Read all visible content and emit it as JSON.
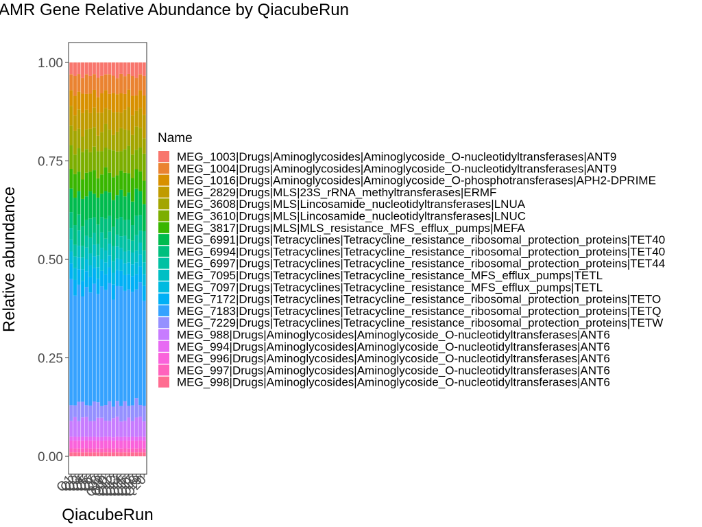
{
  "chart_data": {
    "type": "bar",
    "stacked": true,
    "title": "AMR Gene Relative Abundance by QiacubeRun",
    "xlabel": "QiacubeRun",
    "ylabel": "Relative abundance",
    "ylim": [
      0,
      1
    ],
    "yticks": [
      "0.00",
      "0.25",
      "0.50",
      "0.75",
      "1.00"
    ],
    "grid": false,
    "legend_title": "Name",
    "legend_position": "right",
    "categories": [
      "Q1",
      "Q2",
      "Q3",
      "Q4",
      "Q5",
      "Q6",
      "Q7",
      "Q8",
      "Q9",
      "Q10",
      "Q11",
      "Q12",
      "Q13",
      "Q14",
      "Q15",
      "Q16",
      "Q17",
      "Q18",
      "Q19",
      "Q20"
    ],
    "series": [
      {
        "name": "MEG_1003|Drugs|Aminoglycosides|Aminoglycoside_O-nucleotidyltransferases|ANT9",
        "color": "#F8766D",
        "values": [
          0.03,
          0.035,
          0.03,
          0.04,
          0.03,
          0.035,
          0.03,
          0.04,
          0.035,
          0.03,
          0.03,
          0.035,
          0.04,
          0.03,
          0.035,
          0.03,
          0.035,
          0.04,
          0.03,
          0.035
        ]
      },
      {
        "name": "MEG_1004|Drugs|Aminoglycosides|Aminoglycoside_O-nucleotidyltransferases|ANT9",
        "color": "#EA8331",
        "values": [
          0.04,
          0.05,
          0.045,
          0.04,
          0.05,
          0.045,
          0.04,
          0.05,
          0.045,
          0.04,
          0.05,
          0.045,
          0.04,
          0.05,
          0.045,
          0.04,
          0.05,
          0.045,
          0.04,
          0.05
        ]
      },
      {
        "name": "MEG_1016|Drugs|Aminoglycosides|Aminoglycoside_O-phosphotransferases|APH2-DPRIME",
        "color": "#D89000",
        "values": [
          0.04,
          0.05,
          0.045,
          0.05,
          0.04,
          0.05,
          0.045,
          0.04,
          0.05,
          0.045,
          0.04,
          0.05,
          0.045,
          0.05,
          0.04,
          0.045,
          0.05,
          0.04,
          0.045,
          0.05
        ]
      },
      {
        "name": "MEG_2829|Drugs|MLS|23S_rRNA_methyltransferases|ERMF",
        "color": "#C09B00",
        "values": [
          0.05,
          0.04,
          0.05,
          0.06,
          0.05,
          0.04,
          0.05,
          0.06,
          0.05,
          0.04,
          0.05,
          0.06,
          0.05,
          0.04,
          0.05,
          0.06,
          0.05,
          0.04,
          0.05,
          0.06
        ]
      },
      {
        "name": "MEG_3608|Drugs|MLS|Lincosamide_nucleotidyltransferases|LNUA",
        "color": "#A3A500",
        "values": [
          0.05,
          0.06,
          0.05,
          0.04,
          0.05,
          0.06,
          0.05,
          0.04,
          0.05,
          0.06,
          0.05,
          0.04,
          0.05,
          0.06,
          0.05,
          0.04,
          0.05,
          0.06,
          0.05,
          0.04
        ]
      },
      {
        "name": "MEG_3610|Drugs|MLS|Lincosamide_nucleotidyltransferases|LNUC",
        "color": "#7CAE00",
        "values": [
          0.06,
          0.05,
          0.06,
          0.07,
          0.06,
          0.05,
          0.06,
          0.07,
          0.06,
          0.05,
          0.06,
          0.07,
          0.06,
          0.05,
          0.06,
          0.07,
          0.06,
          0.05,
          0.06,
          0.07
        ]
      },
      {
        "name": "MEG_3817|Drugs|MLS|MLS_resistance_MFS_efflux_pumps|MEFA",
        "color": "#39B600",
        "values": [
          0.05,
          0.06,
          0.05,
          0.05,
          0.06,
          0.05,
          0.06,
          0.05,
          0.05,
          0.06,
          0.05,
          0.06,
          0.05,
          0.05,
          0.06,
          0.05,
          0.06,
          0.05,
          0.05,
          0.06
        ]
      },
      {
        "name": "MEG_6991|Drugs|Tetracyclines|Tetracycline_resistance_ribosomal_protection_proteins|TET40",
        "color": "#00BB4E",
        "values": [
          0.06,
          0.07,
          0.06,
          0.07,
          0.06,
          0.07,
          0.06,
          0.07,
          0.06,
          0.07,
          0.06,
          0.07,
          0.06,
          0.07,
          0.06,
          0.07,
          0.06,
          0.07,
          0.06,
          0.07
        ]
      },
      {
        "name": "MEG_6994|Drugs|Tetracyclines|Tetracycline_resistance_ribosomal_protection_proteins|TET40",
        "color": "#00BF7D",
        "values": [
          0.04,
          0.05,
          0.04,
          0.05,
          0.04,
          0.05,
          0.04,
          0.05,
          0.04,
          0.05,
          0.04,
          0.05,
          0.04,
          0.05,
          0.04,
          0.05,
          0.04,
          0.05,
          0.04,
          0.05
        ]
      },
      {
        "name": "MEG_6997|Drugs|Tetracyclines|Tetracycline_resistance_ribosomal_protection_proteins|TET44",
        "color": "#00C1A3",
        "values": [
          0.03,
          0.03,
          0.04,
          0.03,
          0.03,
          0.04,
          0.03,
          0.03,
          0.04,
          0.03,
          0.03,
          0.04,
          0.03,
          0.03,
          0.04,
          0.03,
          0.03,
          0.04,
          0.03,
          0.03
        ]
      },
      {
        "name": "MEG_7095|Drugs|Tetracyclines|Tetracycline_resistance_MFS_efflux_pumps|TETL",
        "color": "#00BFC4",
        "values": [
          0.03,
          0.03,
          0.03,
          0.03,
          0.03,
          0.03,
          0.03,
          0.03,
          0.03,
          0.03,
          0.03,
          0.03,
          0.03,
          0.03,
          0.03,
          0.03,
          0.03,
          0.03,
          0.03,
          0.03
        ]
      },
      {
        "name": "MEG_7097|Drugs|Tetracyclines|Tetracycline_resistance_MFS_efflux_pumps|TETL",
        "color": "#00BAE0",
        "values": [
          0.03,
          0.03,
          0.03,
          0.03,
          0.03,
          0.03,
          0.03,
          0.03,
          0.03,
          0.03,
          0.03,
          0.03,
          0.03,
          0.03,
          0.03,
          0.03,
          0.03,
          0.03,
          0.03,
          0.03
        ]
      },
      {
        "name": "MEG_7172|Drugs|Tetracyclines|Tetracycline_resistance_ribosomal_protection_proteins|TETO",
        "color": "#00B0F6",
        "values": [
          0.04,
          0.04,
          0.04,
          0.04,
          0.04,
          0.04,
          0.04,
          0.04,
          0.04,
          0.04,
          0.04,
          0.04,
          0.04,
          0.04,
          0.04,
          0.04,
          0.04,
          0.04,
          0.04,
          0.04
        ]
      },
      {
        "name": "MEG_7183|Drugs|Tetracyclines|Tetracycline_resistance_ribosomal_protection_proteins|TETQ",
        "color": "#35A2FF",
        "values": [
          0.32,
          0.28,
          0.3,
          0.27,
          0.3,
          0.29,
          0.3,
          0.28,
          0.31,
          0.29,
          0.3,
          0.28,
          0.29,
          0.31,
          0.28,
          0.3,
          0.29,
          0.28,
          0.31,
          0.27
        ]
      },
      {
        "name": "MEG_7229|Drugs|Tetracyclines|Tetracycline_resistance_ribosomal_protection_proteins|TETW",
        "color": "#9590FF",
        "values": [
          0.04,
          0.03,
          0.05,
          0.04,
          0.03,
          0.04,
          0.05,
          0.04,
          0.03,
          0.04,
          0.05,
          0.03,
          0.04,
          0.04,
          0.05,
          0.03,
          0.04,
          0.05,
          0.03,
          0.04
        ]
      },
      {
        "name": "MEG_988|Drugs|Aminoglycosides|Aminoglycoside_O-nucleotidyltransferases|ANT6",
        "color": "#C77CFF",
        "values": [
          0.04,
          0.05,
          0.04,
          0.05,
          0.05,
          0.04,
          0.04,
          0.05,
          0.05,
          0.04,
          0.04,
          0.05,
          0.05,
          0.04,
          0.04,
          0.05,
          0.04,
          0.05,
          0.05,
          0.04
        ]
      },
      {
        "name": "MEG_994|Drugs|Aminoglycosides|Aminoglycoside_O-nucleotidyltransferases|ANT6",
        "color": "#E76BF3",
        "values": [
          0.01,
          0.01,
          0.01,
          0.01,
          0.01,
          0.01,
          0.01,
          0.01,
          0.01,
          0.01,
          0.01,
          0.01,
          0.01,
          0.01,
          0.01,
          0.01,
          0.01,
          0.01,
          0.01,
          0.01
        ]
      },
      {
        "name": "MEG_996|Drugs|Aminoglycosides|Aminoglycoside_O-nucleotidyltransferases|ANT6",
        "color": "#FA62DB",
        "values": [
          0.02,
          0.02,
          0.02,
          0.02,
          0.02,
          0.02,
          0.02,
          0.02,
          0.02,
          0.02,
          0.02,
          0.02,
          0.02,
          0.02,
          0.02,
          0.02,
          0.02,
          0.02,
          0.02,
          0.02
        ]
      },
      {
        "name": "MEG_997|Drugs|Aminoglycosides|Aminoglycoside_O-nucleotidyltransferases|ANT6",
        "color": "#FF62BC",
        "values": [
          0.01,
          0.01,
          0.01,
          0.01,
          0.01,
          0.01,
          0.01,
          0.01,
          0.01,
          0.01,
          0.01,
          0.01,
          0.01,
          0.01,
          0.01,
          0.01,
          0.01,
          0.01,
          0.01,
          0.01
        ]
      },
      {
        "name": "MEG_998|Drugs|Aminoglycosides|Aminoglycoside_O-nucleotidyltransferases|ANT6",
        "color": "#FF6C91",
        "values": [
          0.01,
          0.01,
          0.01,
          0.01,
          0.01,
          0.01,
          0.01,
          0.01,
          0.01,
          0.01,
          0.01,
          0.01,
          0.01,
          0.01,
          0.01,
          0.01,
          0.01,
          0.01,
          0.01,
          0.01
        ]
      }
    ]
  }
}
